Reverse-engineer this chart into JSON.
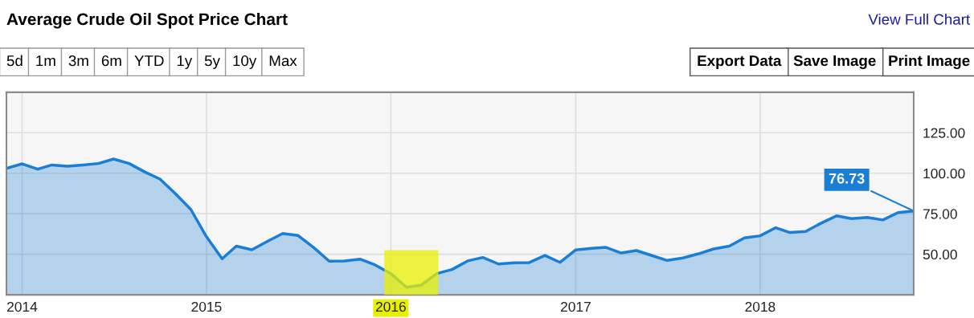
{
  "chart_data": {
    "type": "area",
    "title": "Average Crude Oil Spot Price Chart",
    "x": [
      "2013-12",
      "2014-01",
      "2014-02",
      "2014-03",
      "2014-04",
      "2014-05",
      "2014-06",
      "2014-07",
      "2014-08",
      "2014-09",
      "2014-10",
      "2014-11",
      "2014-12",
      "2015-01",
      "2015-02",
      "2015-03",
      "2015-04",
      "2015-05",
      "2015-06",
      "2015-07",
      "2015-08",
      "2015-09",
      "2015-10",
      "2015-11",
      "2015-12",
      "2016-01",
      "2016-02",
      "2016-03",
      "2016-04",
      "2016-05",
      "2016-06",
      "2016-07",
      "2016-08",
      "2016-09",
      "2016-10",
      "2016-11",
      "2016-12",
      "2017-01",
      "2017-02",
      "2017-03",
      "2017-04",
      "2017-05",
      "2017-06",
      "2017-07",
      "2017-08",
      "2017-09",
      "2017-10",
      "2017-11",
      "2017-12",
      "2018-01",
      "2018-02",
      "2018-03",
      "2018-04",
      "2018-05",
      "2018-06",
      "2018-07",
      "2018-08",
      "2018-09",
      "2018-10",
      "2018-11"
    ],
    "series": [
      {
        "color": "#1a7fd4",
        "values": [
          103.0,
          105.8,
          102.5,
          105.1,
          104.3,
          105.1,
          106.0,
          108.8,
          106.0,
          100.8,
          96.4,
          87.2,
          77.7,
          60.8,
          47.2,
          55.0,
          52.8,
          57.9,
          62.8,
          61.6,
          54.2,
          45.7,
          45.9,
          47.0,
          43.4,
          38.1,
          29.6,
          31.0,
          38.1,
          40.6,
          45.9,
          48.0,
          44.0,
          44.7,
          44.9,
          49.3,
          45.0,
          52.7,
          53.7,
          54.3,
          50.8,
          52.3,
          49.2,
          46.2,
          47.7,
          50.3,
          53.3,
          55.0,
          60.1,
          61.4,
          66.4,
          63.4,
          64.1,
          69.1,
          73.7,
          72.0,
          72.7,
          71.2,
          75.7,
          76.73
        ]
      }
    ],
    "xlim": [
      "2013-12-01",
      "2018-11-01"
    ],
    "xticks": [
      {
        "value": "2014-01-01",
        "label": "2014"
      },
      {
        "value": "2015-01-01",
        "label": "2015"
      },
      {
        "value": "2016-01-01",
        "label": "2016"
      },
      {
        "value": "2017-01-01",
        "label": "2017"
      },
      {
        "value": "2018-01-01",
        "label": "2018"
      }
    ],
    "ylim": [
      25,
      150
    ],
    "yticks": [
      {
        "value": 50,
        "label": "50.00"
      },
      {
        "value": 75,
        "label": "75.00"
      },
      {
        "value": 100,
        "label": "100.00"
      },
      {
        "value": 125,
        "label": "125.00"
      }
    ],
    "grid": true,
    "bands": [
      {
        "axis": "x",
        "from": "2015-12-19",
        "to": "2016-04-04",
        "color": "#e8f000"
      }
    ],
    "annotations": [
      "View Full Chart",
      "5d",
      "1m",
      "3m",
      "6m",
      "YTD",
      "1y",
      "5y",
      "10y",
      "Max",
      "Export Data",
      "Save Image",
      "Print Image",
      {
        "text": "76.73",
        "x": "2018-11",
        "y": 76.73
      }
    ]
  }
}
